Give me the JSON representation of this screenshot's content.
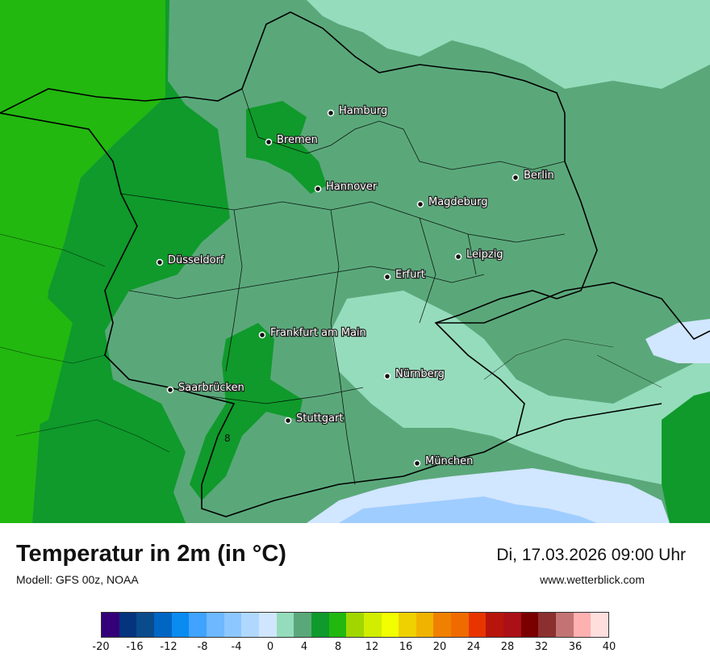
{
  "map": {
    "cities": [
      {
        "name": "Hamburg"
      },
      {
        "name": "Bremen"
      },
      {
        "name": "Hannover"
      },
      {
        "name": "Berlin"
      },
      {
        "name": "Magdeburg"
      },
      {
        "name": "Düsseldorf"
      },
      {
        "name": "Leipzig"
      },
      {
        "name": "Erfurt"
      },
      {
        "name": "Frankfurt am Main"
      },
      {
        "name": "Nürnberg"
      },
      {
        "name": "Saarbrücken"
      },
      {
        "name": "Stuttgart"
      },
      {
        "name": "München"
      }
    ],
    "value_labels": [
      "8"
    ],
    "colors": {
      "temp_4_6": "#5aa87a",
      "temp_2_4": "#95dcbc",
      "temp_6_8": "#0f9a2b",
      "temp_8_10": "#22b810",
      "temp_0_2": "#d1e6ff",
      "temp_m2_0": "#9fcdff"
    }
  },
  "footer": {
    "title": "Temperatur in 2m (in °C)",
    "model": "Modell: GFS 00z, NOAA",
    "datetime": "Di, 17.03.2026 09:00 Uhr",
    "website": "www.wetterblick.com"
  },
  "legend": {
    "colors": [
      "#33007a",
      "#05337e",
      "#0a4b8c",
      "#0066c4",
      "#0a8bf0",
      "#3fa3ff",
      "#6db8ff",
      "#8dc7ff",
      "#b0d8ff",
      "#d0e6ff",
      "#95dcbc",
      "#5aa87a",
      "#0f9a2b",
      "#22b810",
      "#a1d600",
      "#d1ed00",
      "#f2ff00",
      "#efd000",
      "#f0b300",
      "#f08000",
      "#ef6b00",
      "#e83500",
      "#b7150c",
      "#aa1016",
      "#7a0000",
      "#8b2f2f",
      "#c37373",
      "#ffb0b0",
      "#ffdede"
    ],
    "ticks": [
      "-20",
      "-16",
      "-12",
      "-8",
      "-4",
      "0",
      "4",
      "8",
      "12",
      "16",
      "20",
      "24",
      "28",
      "32",
      "36",
      "40"
    ]
  }
}
